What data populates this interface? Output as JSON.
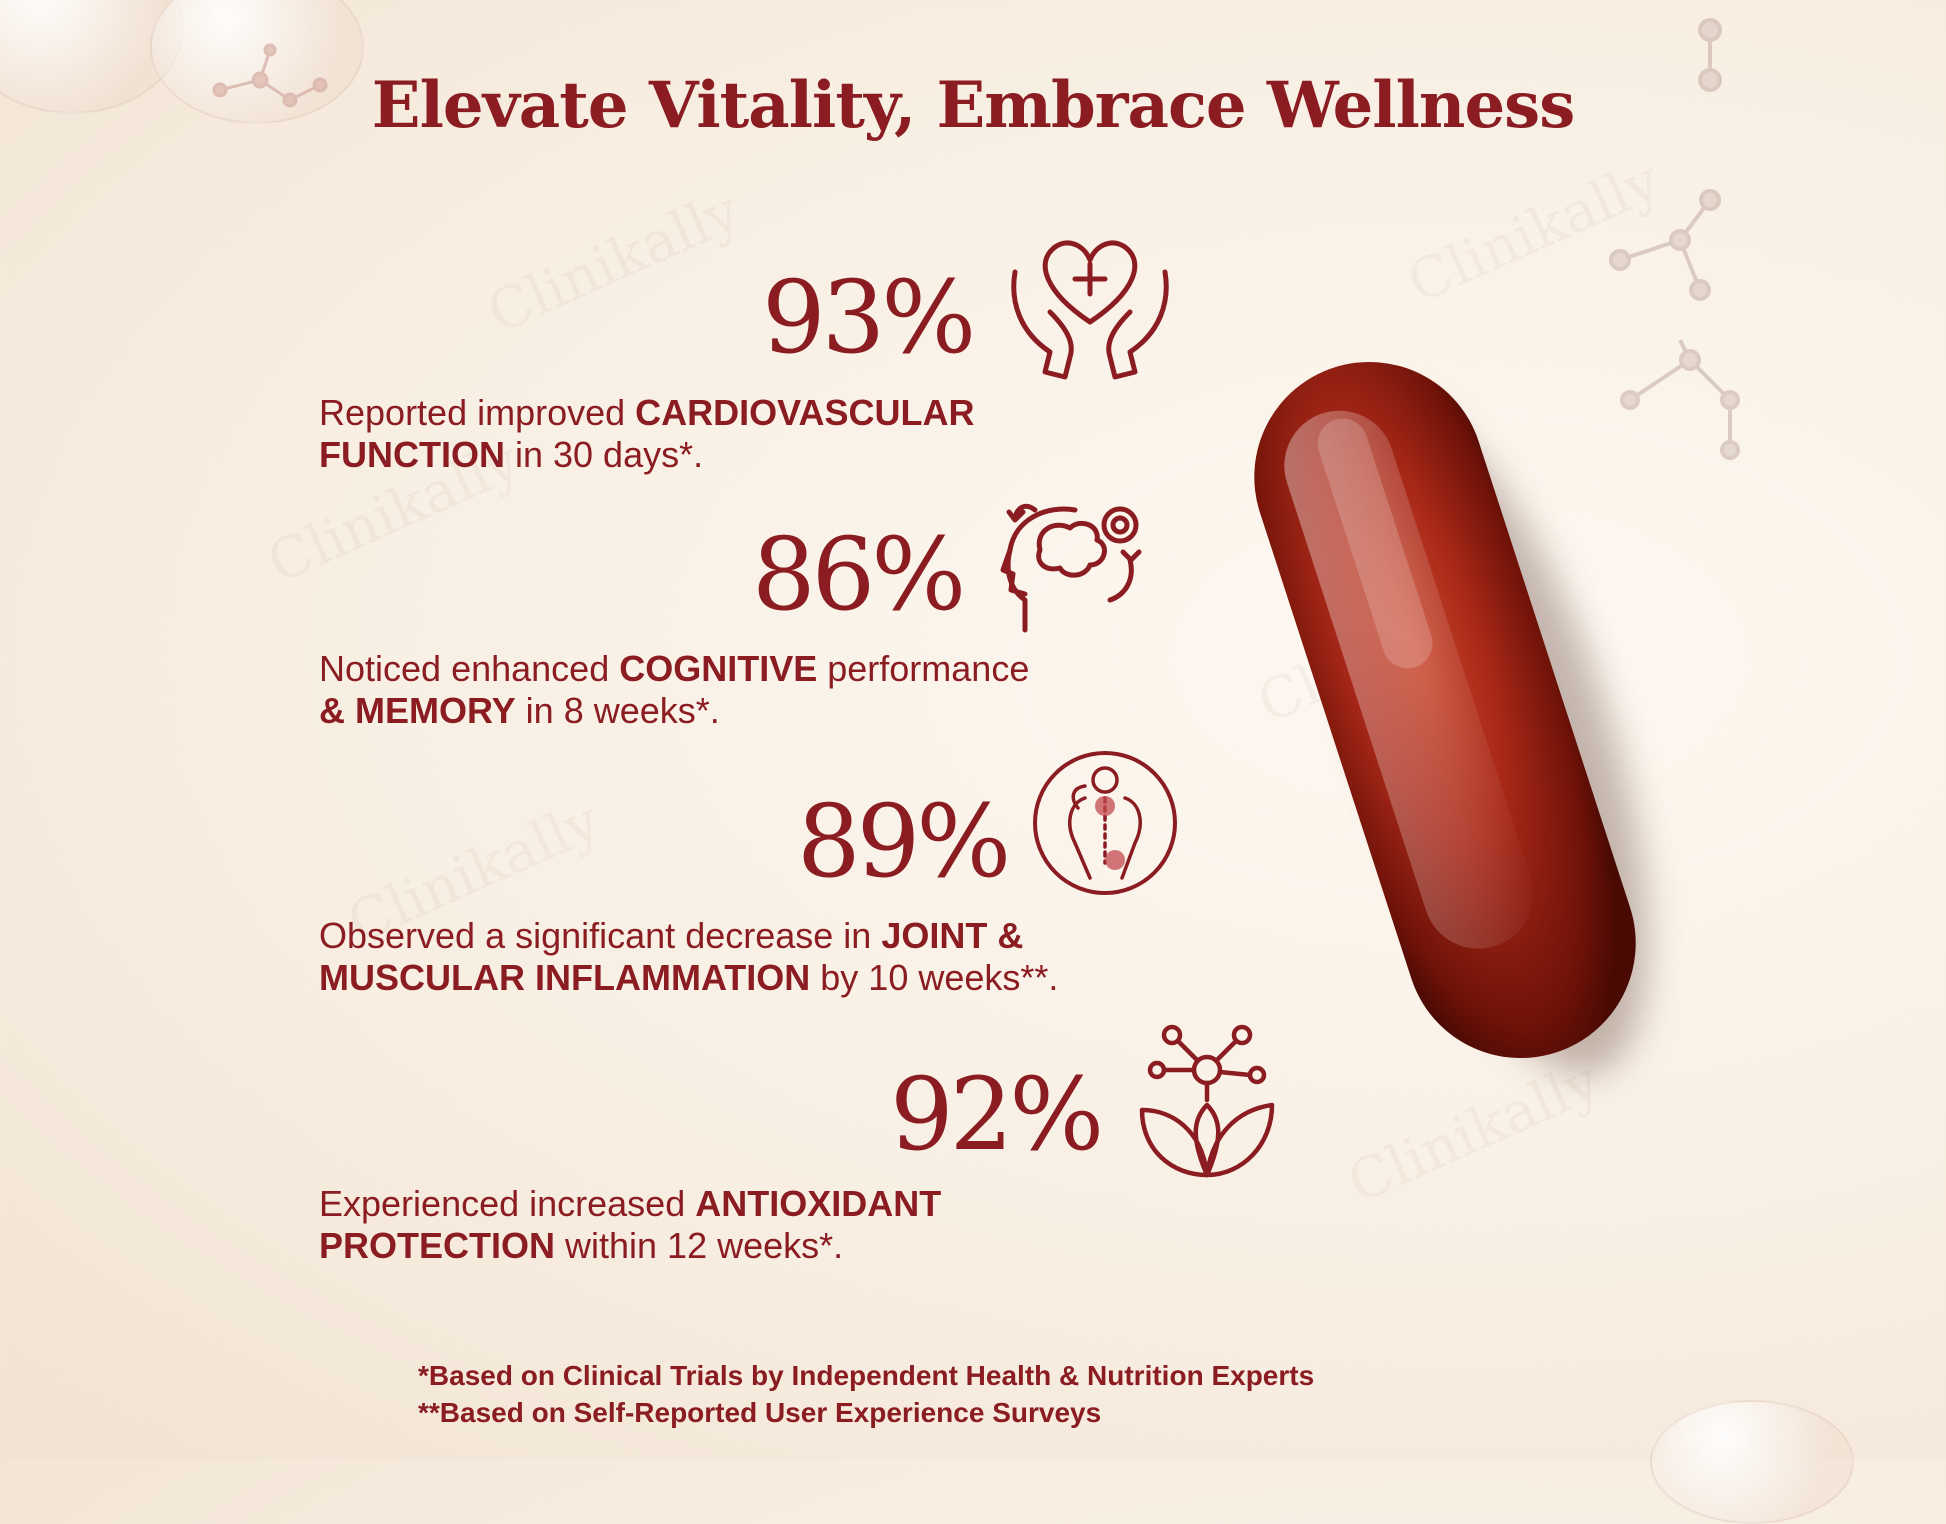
{
  "title": "Elevate Vitality, Embrace Wellness",
  "watermark_text": "Clinikally",
  "stats": [
    {
      "percent": "93%",
      "icon": "heart-hands-icon",
      "pre": "Reported improved ",
      "bold1": "CARDIOVASCULAR FUNCTION",
      "mid": " in 30 days*.",
      "bold2": "",
      "post": ""
    },
    {
      "percent": "86%",
      "icon": "brain-head-icon",
      "pre": "Noticed enhanced ",
      "bold1": "COGNITIVE",
      "mid": " performance ",
      "bold2": "& MEMORY",
      "post": " in 8 weeks*."
    },
    {
      "percent": "89%",
      "icon": "joint-pain-icon",
      "pre": "Observed a significant decrease in ",
      "bold1": "JOINT & MUSCULAR INFLAMMATION",
      "mid": " by 10 weeks**.",
      "bold2": "",
      "post": ""
    },
    {
      "percent": "92%",
      "icon": "molecule-leaf-icon",
      "pre": "Experienced increased ",
      "bold1": "ANTIOXIDANT PROTECTION",
      "mid": " within 12 weeks*.",
      "bold2": "",
      "post": ""
    }
  ],
  "footnotes": [
    "*Based on Clinical Trials by Independent Health & Nutrition Experts",
    "**Based on Self-Reported User Experience Surveys"
  ],
  "colors": {
    "brand_red": "#8a1c22",
    "background": "#f8efe3",
    "capsule": "#a8281a"
  }
}
